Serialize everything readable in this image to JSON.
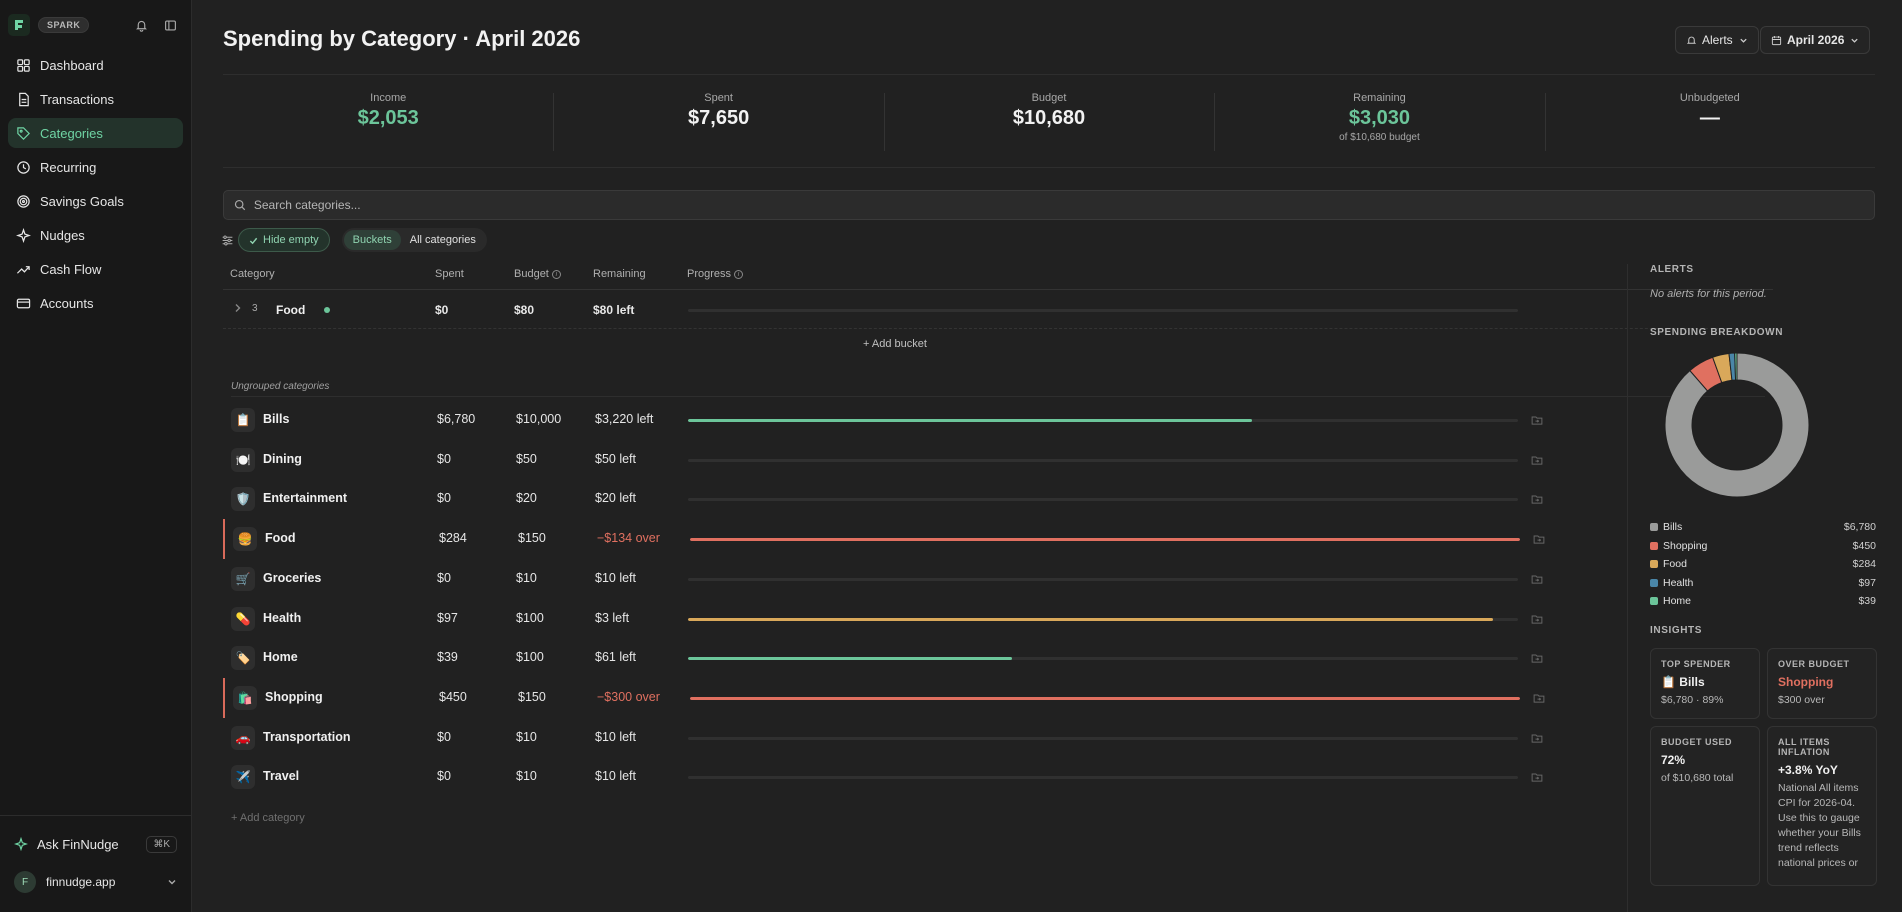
{
  "brand": {
    "name": "SPARK"
  },
  "nav": [
    {
      "label": "Dashboard",
      "icon": "grid-icon"
    },
    {
      "label": "Transactions",
      "icon": "document-icon"
    },
    {
      "label": "Categories",
      "icon": "tag-icon"
    },
    {
      "label": "Recurring",
      "icon": "clock-icon"
    },
    {
      "label": "Savings Goals",
      "icon": "target-icon"
    },
    {
      "label": "Nudges",
      "icon": "sparkle-icon"
    },
    {
      "label": "Cash Flow",
      "icon": "trend-icon"
    },
    {
      "label": "Accounts",
      "icon": "card-icon"
    }
  ],
  "active_nav": "Categories",
  "ask": {
    "label": "Ask FinNudge",
    "shortcut": "⌘K"
  },
  "account": {
    "initial": "F",
    "name": "finnudge.app"
  },
  "header": {
    "title": "Spending by Category · April 2026",
    "alerts_label": "Alerts",
    "period_label": "April 2026"
  },
  "stats": [
    {
      "label": "Income",
      "value": "$2,053",
      "sub": ""
    },
    {
      "label": "Spent",
      "value": "$7,650",
      "sub": ""
    },
    {
      "label": "Budget",
      "value": "$10,680",
      "sub": ""
    },
    {
      "label": "Remaining",
      "value": "$3,030",
      "sub": "of $10,680 budget"
    },
    {
      "label": "Unbudgeted",
      "value": "—",
      "sub": ""
    }
  ],
  "search": {
    "placeholder": "Search categories..."
  },
  "filters": {
    "hide_empty": "Hide empty",
    "buckets": "Buckets",
    "all": "All categories"
  },
  "table": {
    "headers": {
      "category": "Category",
      "spent": "Spent",
      "budget": "Budget",
      "remaining": "Remaining",
      "progress": "Progress"
    },
    "bucket": {
      "count": "3",
      "name": "Food",
      "spent": "$0",
      "budget": "$80",
      "remaining": "$80 left"
    },
    "add_bucket": "+ Add bucket",
    "ungrouped_label": "Ungrouped categories",
    "rows": [
      {
        "icon": "📋",
        "name": "Bills",
        "spent": "$6,780",
        "budget": "$10,000",
        "remaining": "$3,220 left",
        "progress": 0.68,
        "status": "ok"
      },
      {
        "icon": "🍽️",
        "name": "Dining",
        "spent": "$0",
        "budget": "$50",
        "remaining": "$50 left",
        "progress": 0,
        "status": "ok"
      },
      {
        "icon": "🛡️",
        "name": "Entertainment",
        "spent": "$0",
        "budget": "$20",
        "remaining": "$20 left",
        "progress": 0,
        "status": "ok"
      },
      {
        "icon": "🍔",
        "name": "Food",
        "spent": "$284",
        "budget": "$150",
        "remaining": "−$134 over",
        "progress": 1,
        "status": "over"
      },
      {
        "icon": "🛒",
        "name": "Groceries",
        "spent": "$0",
        "budget": "$10",
        "remaining": "$10 left",
        "progress": 0,
        "status": "ok"
      },
      {
        "icon": "💊",
        "name": "Health",
        "spent": "$97",
        "budget": "$100",
        "remaining": "$3 left",
        "progress": 0.97,
        "status": "near"
      },
      {
        "icon": "🏷️",
        "name": "Home",
        "spent": "$39",
        "budget": "$100",
        "remaining": "$61 left",
        "progress": 0.39,
        "status": "ok"
      },
      {
        "icon": "🛍️",
        "name": "Shopping",
        "spent": "$450",
        "budget": "$150",
        "remaining": "−$300 over",
        "progress": 1,
        "status": "over"
      },
      {
        "icon": "🚗",
        "name": "Transportation",
        "spent": "$0",
        "budget": "$10",
        "remaining": "$10 left",
        "progress": 0,
        "status": "ok"
      },
      {
        "icon": "✈️",
        "name": "Travel",
        "spent": "$0",
        "budget": "$10",
        "remaining": "$10 left",
        "progress": 0,
        "status": "ok"
      }
    ],
    "add_category": "+ Add category"
  },
  "colors": {
    "ok": "#6cc59a",
    "over": "#e07060",
    "near": "#d9a85a",
    "accent": "#6fd4a4"
  },
  "right": {
    "alerts_title": "ALERTS",
    "no_alerts": "No alerts for this period.",
    "breakdown_title": "SPENDING BREAKDOWN",
    "breakdown": [
      {
        "name": "Bills",
        "value": 6780,
        "amount": "$6,780",
        "color": "#9a9b9a"
      },
      {
        "name": "Shopping",
        "value": 450,
        "amount": "$450",
        "color": "#e07060"
      },
      {
        "name": "Food",
        "value": 284,
        "amount": "$284",
        "color": "#d9a85a"
      },
      {
        "name": "Health",
        "value": 97,
        "amount": "$97",
        "color": "#4a86a8"
      },
      {
        "name": "Home",
        "value": 39,
        "amount": "$39",
        "color": "#6cc59a"
      }
    ],
    "insights_title": "INSIGHTS",
    "insights": {
      "top_spender": {
        "title": "TOP SPENDER",
        "icon": "📋",
        "value": "Bills",
        "sub": "$6,780 · 89%"
      },
      "over_budget": {
        "title": "OVER BUDGET",
        "value": "Shopping",
        "sub": "$300 over"
      },
      "budget_used": {
        "title": "BUDGET USED",
        "value": "72%",
        "sub": "of $10,680 total"
      },
      "inflation": {
        "title": "ALL ITEMS INFLATION",
        "value": "+3.8% YoY",
        "sub": "National All items CPI for 2026-04. Use this to gauge whether your Bills trend reflects national prices or"
      }
    }
  }
}
